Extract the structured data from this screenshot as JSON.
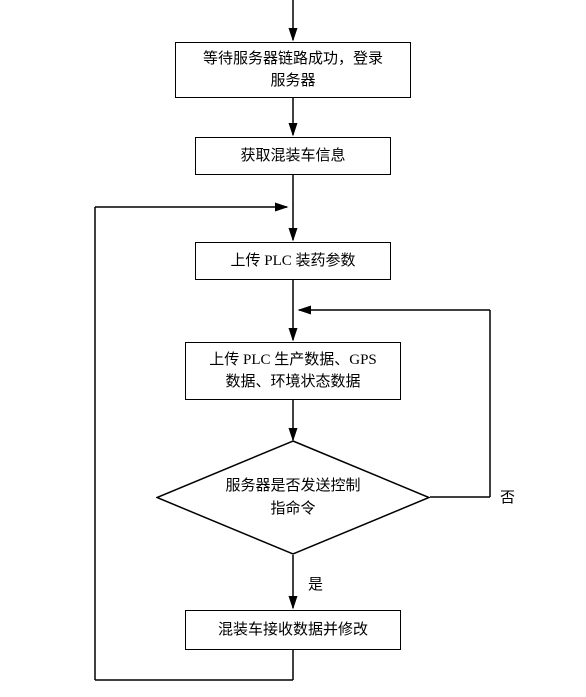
{
  "flowchart": {
    "type": "flowchart",
    "background_color": "#ffffff",
    "border_color": "#000000",
    "font_size": 15,
    "nodes": {
      "n1": {
        "label": "等待服务器链路成功，登录\n服务器"
      },
      "n2": {
        "label": "获取混装车信息"
      },
      "n3": {
        "label": "上传 PLC 装药参数"
      },
      "n4": {
        "label": "上传 PLC 生产数据、GPS\n数据、环境状态数据"
      },
      "n5": {
        "label": "服务器是否发送控制\n指命令"
      },
      "n6": {
        "label": "混装车接收数据并修改"
      }
    },
    "decision_labels": {
      "yes": "是",
      "no": "否"
    }
  }
}
